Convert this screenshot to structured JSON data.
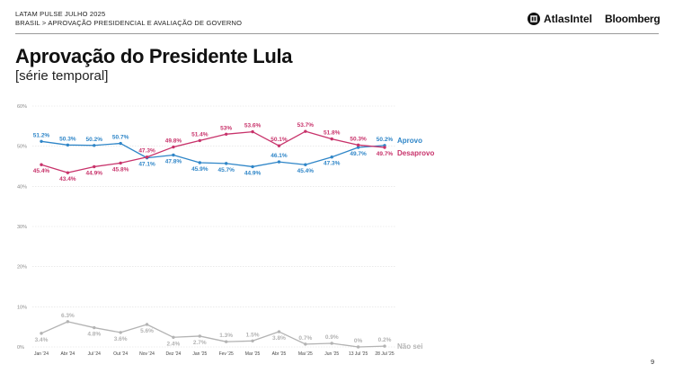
{
  "header": {
    "line1": "LATAM PULSE JULHO 2025",
    "line2": "BRASIL > APROVAÇÃO PRESIDENCIAL E AVALIAÇÃO DE GOVERNO",
    "brand_atlas": "AtlasIntel",
    "brand_bloomberg": "Bloomberg"
  },
  "title": "Aprovação do Presidente Lula",
  "subtitle": "[série temporal]",
  "page_number": "9",
  "colors": {
    "aprovo": "#2f86c8",
    "desaprovo": "#c8336b",
    "nao_sei": "#b3b3b3",
    "grid": "#dddddd"
  },
  "chart_data": {
    "type": "line",
    "title": "",
    "xlabel": "",
    "ylabel": "",
    "ylim": [
      0,
      60
    ],
    "yticks": [
      "0%",
      "10%",
      "20%",
      "30%",
      "40%",
      "50%",
      "60%"
    ],
    "grid": true,
    "legend": "inline-right",
    "categories": [
      "Jan '24",
      "Abr '24",
      "Jul '24",
      "Out '24",
      "Nov '24",
      "Dez '24",
      "Jan '25",
      "Fev '25",
      "Mar '25",
      "Abr '25",
      "Mai '25",
      "Jun '25",
      "13 Jul '25",
      "28 Jul '25"
    ],
    "x_index": [
      0,
      1,
      2,
      3,
      4,
      5,
      6,
      7,
      8,
      9,
      10,
      11,
      12,
      13
    ],
    "series": [
      {
        "name": "Aprovo",
        "color": "#2f86c8",
        "values": [
          51.2,
          50.3,
          50.2,
          50.7,
          47.1,
          47.8,
          45.9,
          45.7,
          44.9,
          46.1,
          45.4,
          47.3,
          49.7,
          50.2
        ],
        "labels": [
          "51.2%",
          "50.3%",
          "50.2%",
          "50.7%",
          "47.1%",
          "47.8%",
          "45.9%",
          "45.7%",
          "44.9%",
          "46.1%",
          "45.4%",
          "47.3%",
          "49.7%",
          "50.2%"
        ],
        "label_pos": [
          "above",
          "above",
          "above",
          "above",
          "below",
          "below",
          "below",
          "below",
          "below",
          "above",
          "below",
          "below",
          "below",
          "above"
        ]
      },
      {
        "name": "Desaprovo",
        "color": "#c8336b",
        "values": [
          45.4,
          43.4,
          44.9,
          45.8,
          47.3,
          49.8,
          51.4,
          53.0,
          53.6,
          50.1,
          53.7,
          51.8,
          50.3,
          49.7
        ],
        "labels": [
          "45.4%",
          "43.4%",
          "44.9%",
          "45.8%",
          "47.3%",
          "49.8%",
          "51.4%",
          "53%",
          "53.6%",
          "50.1%",
          "53.7%",
          "51.8%",
          "50.3%",
          "49.7%"
        ],
        "label_pos": [
          "below",
          "below",
          "below",
          "below",
          "above",
          "above",
          "above",
          "above",
          "above",
          "above",
          "above",
          "above",
          "above",
          "below"
        ]
      },
      {
        "name": "Não sei",
        "color": "#b3b3b3",
        "values": [
          3.4,
          6.3,
          4.8,
          3.6,
          5.6,
          2.4,
          2.7,
          1.3,
          1.5,
          3.8,
          0.7,
          0.9,
          0.0,
          0.2
        ],
        "labels": [
          "3.4%",
          "6.3%",
          "4.8%",
          "3.6%",
          "5.6%",
          "2.4%",
          "2.7%",
          "1.3%",
          "1.5%",
          "3.8%",
          "0.7%",
          "0.9%",
          "0%",
          "0.2%"
        ],
        "label_pos": [
          "below",
          "above",
          "below",
          "below",
          "below",
          "below",
          "below",
          "above",
          "above",
          "below",
          "above",
          "above",
          "above",
          "above"
        ]
      }
    ]
  }
}
